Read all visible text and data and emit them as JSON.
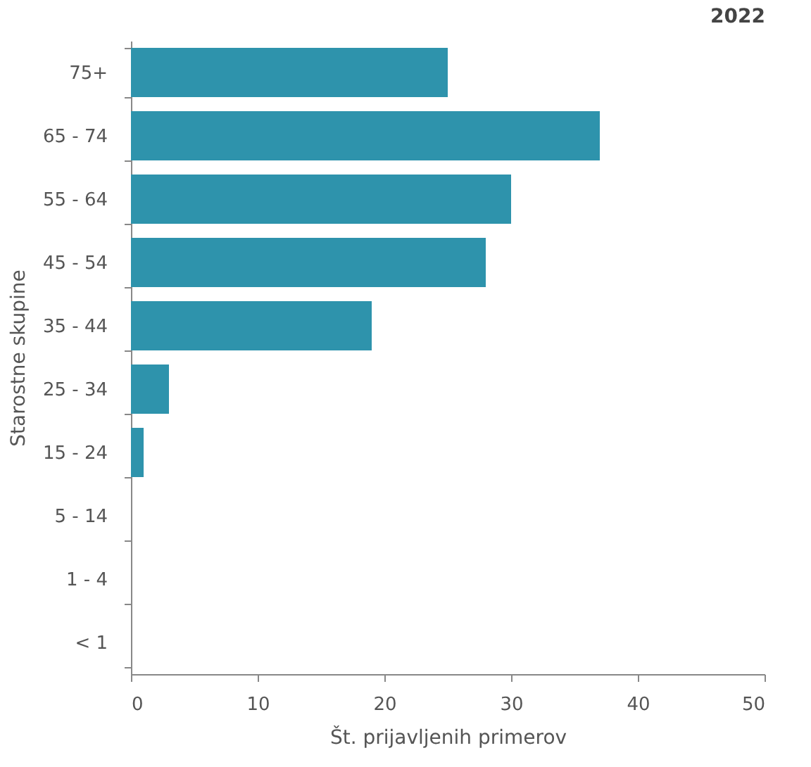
{
  "chart_data": {
    "type": "bar",
    "orientation": "horizontal",
    "title": "2022",
    "xlabel": "Št. prijavljenih primerov",
    "ylabel": "Starostne skupine",
    "categories": [
      "75+",
      "65 - 74",
      "55 - 64",
      "45 - 54",
      "35 - 44",
      "25 - 34",
      "15 - 24",
      "5 - 14",
      "1 - 4",
      "<  1"
    ],
    "values": [
      25,
      37,
      30,
      28,
      19,
      3,
      1,
      0,
      0,
      0
    ],
    "color": "#2e93ac",
    "xlim": [
      0,
      50
    ],
    "xticks": [
      0,
      10,
      20,
      30,
      40,
      50
    ],
    "grid": false
  }
}
